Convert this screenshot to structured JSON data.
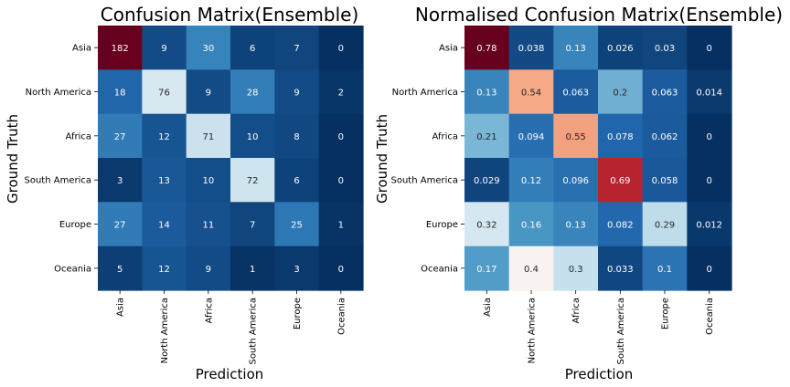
{
  "chart_data": [
    {
      "type": "heatmap",
      "title": "Confusion Matrix(Ensemble)",
      "xlabel": "Prediction",
      "ylabel": "Ground Truth",
      "x_categories": [
        "Asia",
        "North America",
        "Africa",
        "South America",
        "Europe",
        "Oceania"
      ],
      "y_categories": [
        "Asia",
        "North America",
        "Africa",
        "South America",
        "Europe",
        "Oceania"
      ],
      "values": [
        [
          182,
          9,
          30,
          6,
          7,
          0
        ],
        [
          18,
          76,
          9,
          28,
          9,
          2
        ],
        [
          27,
          12,
          71,
          10,
          8,
          0
        ],
        [
          3,
          13,
          10,
          72,
          6,
          0
        ],
        [
          27,
          14,
          11,
          7,
          25,
          1
        ],
        [
          5,
          12,
          9,
          1,
          3,
          0
        ]
      ],
      "labels": [
        [
          "182",
          "9",
          "30",
          "6",
          "7",
          "0"
        ],
        [
          "18",
          "76",
          "9",
          "28",
          "9",
          "2"
        ],
        [
          "27",
          "12",
          "71",
          "10",
          "8",
          "0"
        ],
        [
          "3",
          "13",
          "10",
          "72",
          "6",
          "0"
        ],
        [
          "27",
          "14",
          "11",
          "7",
          "25",
          "1"
        ],
        [
          "5",
          "12",
          "9",
          "1",
          "3",
          "0"
        ]
      ],
      "color_range": [
        0,
        182
      ],
      "colormap": "RdBu_r",
      "grid": false
    },
    {
      "type": "heatmap",
      "title": "Normalised Confusion Matrix(Ensemble)",
      "xlabel": "Prediction",
      "ylabel": "Ground Truth",
      "x_categories": [
        "Asia",
        "North America",
        "Africa",
        "South America",
        "Europe",
        "Oceania"
      ],
      "y_categories": [
        "Asia",
        "North America",
        "Africa",
        "South America",
        "Europe",
        "Oceania"
      ],
      "values": [
        [
          0.78,
          0.038,
          0.13,
          0.026,
          0.03,
          0
        ],
        [
          0.13,
          0.54,
          0.063,
          0.2,
          0.063,
          0.014
        ],
        [
          0.21,
          0.094,
          0.55,
          0.078,
          0.062,
          0
        ],
        [
          0.029,
          0.12,
          0.096,
          0.69,
          0.058,
          0
        ],
        [
          0.32,
          0.16,
          0.13,
          0.082,
          0.29,
          0.012
        ],
        [
          0.17,
          0.4,
          0.3,
          0.033,
          0.1,
          0
        ]
      ],
      "labels": [
        [
          "0.78",
          "0.038",
          "0.13",
          "0.026",
          "0.03",
          "0"
        ],
        [
          "0.13",
          "0.54",
          "0.063",
          "0.2",
          "0.063",
          "0.014"
        ],
        [
          "0.21",
          "0.094",
          "0.55",
          "0.078",
          "0.062",
          "0"
        ],
        [
          "0.029",
          "0.12",
          "0.096",
          "0.69",
          "0.058",
          "0"
        ],
        [
          "0.32",
          "0.16",
          "0.13",
          "0.082",
          "0.29",
          "0.012"
        ],
        [
          "0.17",
          "0.4",
          "0.3",
          "0.033",
          "0.1",
          "0"
        ]
      ],
      "color_range": [
        0,
        0.78
      ],
      "colormap": "RdBu_r",
      "grid": false
    }
  ]
}
